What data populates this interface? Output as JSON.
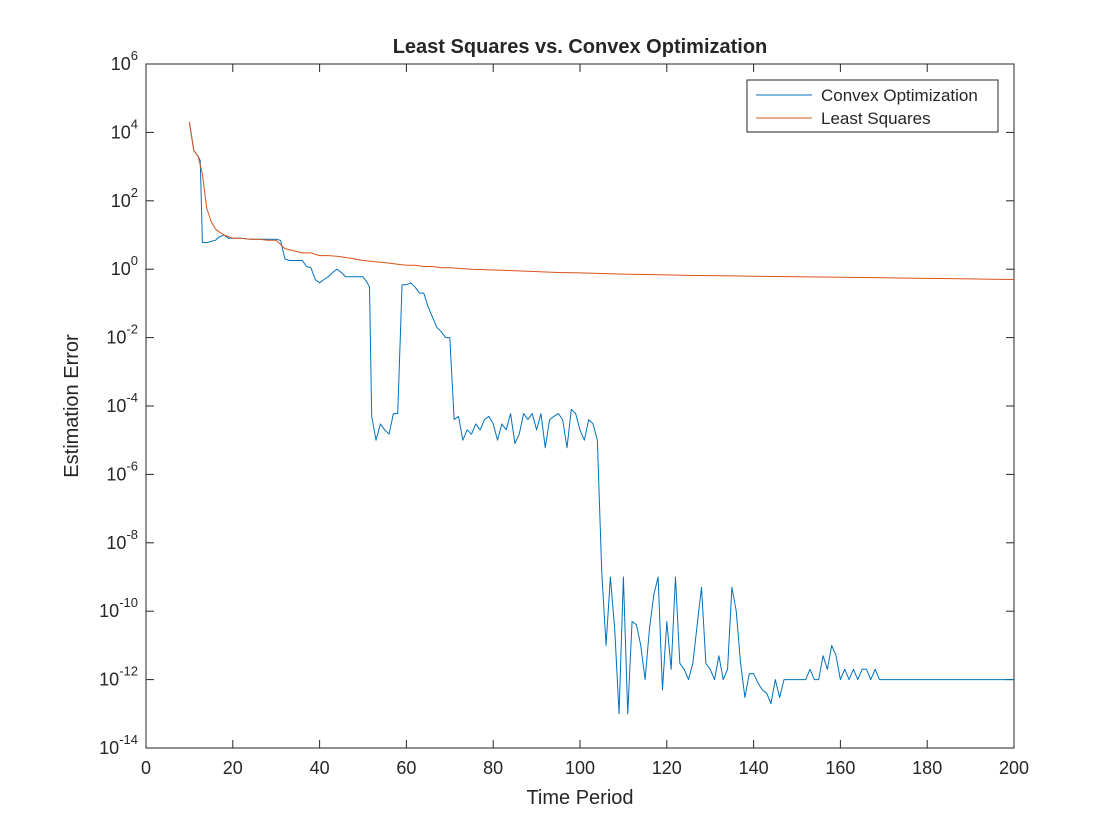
{
  "chart_data": {
    "type": "line",
    "title": "Least Squares vs. Convex Optimization",
    "xlabel": "Time Period",
    "ylabel": "Estimation Error",
    "x_scale": "linear",
    "y_scale": "log",
    "xlim": [
      0,
      200
    ],
    "ylim": [
      1e-14,
      1000000.0
    ],
    "xticks": [
      0,
      20,
      40,
      60,
      80,
      100,
      120,
      140,
      160,
      180,
      200
    ],
    "yticks": [
      {
        "base": "10",
        "exp": "-14",
        "value": 1e-14
      },
      {
        "base": "10",
        "exp": "-12",
        "value": 1e-12
      },
      {
        "base": "10",
        "exp": "-10",
        "value": 1e-10
      },
      {
        "base": "10",
        "exp": "-8",
        "value": 1e-08
      },
      {
        "base": "10",
        "exp": "-6",
        "value": 1e-06
      },
      {
        "base": "10",
        "exp": "-4",
        "value": 0.0001
      },
      {
        "base": "10",
        "exp": "-2",
        "value": 0.01
      },
      {
        "base": "10",
        "exp": "0",
        "value": 1
      },
      {
        "base": "10",
        "exp": "2",
        "value": 100
      },
      {
        "base": "10",
        "exp": "4",
        "value": 10000.0
      },
      {
        "base": "10",
        "exp": "6",
        "value": 1000000.0
      }
    ],
    "grid": false,
    "legend_position": "top-right",
    "series": [
      {
        "name": "Convex Optimization",
        "color": "#0072BD",
        "points": [
          [
            10,
            20000
          ],
          [
            11,
            3000
          ],
          [
            12,
            2000
          ],
          [
            12.5,
            1500
          ],
          [
            13,
            6
          ],
          [
            14,
            6
          ],
          [
            15,
            6.5
          ],
          [
            16,
            7
          ],
          [
            17,
            9
          ],
          [
            18,
            10
          ],
          [
            19,
            8
          ],
          [
            20,
            8
          ],
          [
            21,
            8
          ],
          [
            22,
            8
          ],
          [
            24,
            7.5
          ],
          [
            26,
            7.5
          ],
          [
            28,
            7.5
          ],
          [
            30,
            7.5
          ],
          [
            31,
            7
          ],
          [
            32,
            2
          ],
          [
            33,
            1.8
          ],
          [
            34,
            1.8
          ],
          [
            36,
            1.8
          ],
          [
            37,
            1.2
          ],
          [
            38,
            1.1
          ],
          [
            39,
            0.5
          ],
          [
            40,
            0.4
          ],
          [
            41,
            0.5
          ],
          [
            42,
            0.6
          ],
          [
            43,
            0.8
          ],
          [
            44,
            1.0
          ],
          [
            45,
            0.8
          ],
          [
            46,
            0.6
          ],
          [
            48,
            0.6
          ],
          [
            50,
            0.6
          ],
          [
            51,
            0.4
          ],
          [
            51.5,
            0.3
          ],
          [
            52,
            5e-05
          ],
          [
            53,
            1e-05
          ],
          [
            54,
            3e-05
          ],
          [
            55,
            2e-05
          ],
          [
            56,
            1.5e-05
          ],
          [
            57,
            6e-05
          ],
          [
            58,
            6e-05
          ],
          [
            59,
            0.35
          ],
          [
            60,
            0.35
          ],
          [
            61,
            0.4
          ],
          [
            62,
            0.3
          ],
          [
            63,
            0.2
          ],
          [
            64,
            0.2
          ],
          [
            65,
            0.08
          ],
          [
            66,
            0.04
          ],
          [
            67,
            0.02
          ],
          [
            68,
            0.015
          ],
          [
            69,
            0.01
          ],
          [
            70,
            0.01
          ],
          [
            71,
            4e-05
          ],
          [
            72,
            5e-05
          ],
          [
            73,
            1e-05
          ],
          [
            74,
            2e-05
          ],
          [
            75,
            1.5e-05
          ],
          [
            76,
            3e-05
          ],
          [
            77,
            2e-05
          ],
          [
            78,
            4e-05
          ],
          [
            79,
            5e-05
          ],
          [
            80,
            3e-05
          ],
          [
            81,
            1e-05
          ],
          [
            82,
            3e-05
          ],
          [
            83,
            2e-05
          ],
          [
            84,
            6e-05
          ],
          [
            85,
            8e-06
          ],
          [
            86,
            1.5e-05
          ],
          [
            87,
            6e-05
          ],
          [
            88,
            4e-05
          ],
          [
            89,
            6e-05
          ],
          [
            90,
            2e-05
          ],
          [
            91,
            6e-05
          ],
          [
            92,
            6e-06
          ],
          [
            93,
            4e-05
          ],
          [
            94,
            5e-05
          ],
          [
            95,
            6e-05
          ],
          [
            96,
            4e-05
          ],
          [
            97,
            6e-06
          ],
          [
            98,
            8e-05
          ],
          [
            99,
            6e-05
          ],
          [
            100,
            2e-05
          ],
          [
            101,
            1e-05
          ],
          [
            102,
            4e-05
          ],
          [
            103,
            3e-05
          ],
          [
            104,
            1e-05
          ],
          [
            105,
            1.5e-09
          ],
          [
            106,
            1e-11
          ],
          [
            107,
            1e-09
          ],
          [
            108,
            3e-11
          ],
          [
            109,
            1e-13
          ],
          [
            110,
            1e-09
          ],
          [
            111,
            1e-13
          ],
          [
            112,
            5e-11
          ],
          [
            113,
            4e-11
          ],
          [
            114,
            1e-11
          ],
          [
            115,
            1e-12
          ],
          [
            116,
            3e-11
          ],
          [
            117,
            3e-10
          ],
          [
            118,
            1e-09
          ],
          [
            119,
            5e-13
          ],
          [
            120,
            5e-11
          ],
          [
            121,
            2e-12
          ],
          [
            122,
            1e-09
          ],
          [
            123,
            3e-12
          ],
          [
            124,
            2e-12
          ],
          [
            125,
            1e-12
          ],
          [
            126,
            3e-12
          ],
          [
            127,
            4e-11
          ],
          [
            128,
            5e-10
          ],
          [
            129,
            3e-12
          ],
          [
            130,
            2e-12
          ],
          [
            131,
            1e-12
          ],
          [
            132,
            5e-12
          ],
          [
            133,
            1e-12
          ],
          [
            134,
            2e-12
          ],
          [
            135,
            5e-10
          ],
          [
            136,
            1e-10
          ],
          [
            137,
            3e-12
          ],
          [
            138,
            3e-13
          ],
          [
            139,
            1.5e-12
          ],
          [
            140,
            1.5e-12
          ],
          [
            141,
            8e-13
          ],
          [
            142,
            5e-13
          ],
          [
            143,
            4e-13
          ],
          [
            144,
            2e-13
          ],
          [
            145,
            1e-12
          ],
          [
            146,
            3e-13
          ],
          [
            147,
            1e-12
          ],
          [
            148,
            1e-12
          ],
          [
            149,
            1e-12
          ],
          [
            150,
            1e-12
          ],
          [
            151,
            1e-12
          ],
          [
            152,
            1e-12
          ],
          [
            153,
            2e-12
          ],
          [
            154,
            1e-12
          ],
          [
            155,
            1e-12
          ],
          [
            156,
            5e-12
          ],
          [
            157,
            2e-12
          ],
          [
            158,
            1e-11
          ],
          [
            159,
            5e-12
          ],
          [
            160,
            1e-12
          ],
          [
            161,
            2e-12
          ],
          [
            162,
            1e-12
          ],
          [
            163,
            2e-12
          ],
          [
            164,
            1e-12
          ],
          [
            165,
            2e-12
          ],
          [
            166,
            2e-12
          ],
          [
            167,
            1e-12
          ],
          [
            168,
            2e-12
          ],
          [
            169,
            1e-12
          ],
          [
            170,
            1e-12
          ],
          [
            171,
            1e-12
          ],
          [
            172,
            1e-12
          ],
          [
            173,
            1e-12
          ],
          [
            174,
            1e-12
          ],
          [
            175,
            1e-12
          ],
          [
            176,
            1e-12
          ],
          [
            177,
            1e-12
          ],
          [
            178,
            1e-12
          ],
          [
            179,
            1e-12
          ],
          [
            180,
            1e-12
          ],
          [
            181,
            1e-12
          ],
          [
            182,
            1e-12
          ],
          [
            183,
            1e-12
          ],
          [
            184,
            1e-12
          ],
          [
            185,
            1e-12
          ],
          [
            186,
            1e-12
          ],
          [
            187,
            1e-12
          ],
          [
            188,
            1e-12
          ],
          [
            189,
            1e-12
          ],
          [
            190,
            1e-12
          ],
          [
            191,
            1e-12
          ],
          [
            192,
            1e-12
          ],
          [
            193,
            1e-12
          ],
          [
            194,
            1e-12
          ],
          [
            195,
            1e-12
          ],
          [
            196,
            1e-12
          ],
          [
            197,
            1e-12
          ],
          [
            198,
            1e-12
          ],
          [
            199,
            1e-12
          ],
          [
            200,
            1e-12
          ]
        ]
      },
      {
        "name": "Least Squares",
        "color": "#D95319",
        "points": [
          [
            10,
            20000
          ],
          [
            11,
            3000
          ],
          [
            12,
            2000
          ],
          [
            13,
            600
          ],
          [
            14,
            60
          ],
          [
            15,
            25
          ],
          [
            16,
            15
          ],
          [
            17,
            12
          ],
          [
            18,
            10
          ],
          [
            19,
            9
          ],
          [
            20,
            8
          ],
          [
            22,
            8
          ],
          [
            24,
            7.5
          ],
          [
            26,
            7.5
          ],
          [
            28,
            7
          ],
          [
            30,
            7
          ],
          [
            32,
            4
          ],
          [
            34,
            3.5
          ],
          [
            36,
            3
          ],
          [
            38,
            3
          ],
          [
            40,
            2.5
          ],
          [
            42,
            2.5
          ],
          [
            44,
            2.4
          ],
          [
            46,
            2.2
          ],
          [
            48,
            2
          ],
          [
            50,
            1.8
          ],
          [
            52,
            1.7
          ],
          [
            54,
            1.6
          ],
          [
            56,
            1.5
          ],
          [
            58,
            1.4
          ],
          [
            60,
            1.3
          ],
          [
            62,
            1.3
          ],
          [
            64,
            1.2
          ],
          [
            66,
            1.2
          ],
          [
            68,
            1.1
          ],
          [
            70,
            1.1
          ],
          [
            75,
            1.0
          ],
          [
            80,
            0.95
          ],
          [
            85,
            0.9
          ],
          [
            90,
            0.85
          ],
          [
            95,
            0.8
          ],
          [
            100,
            0.78
          ],
          [
            105,
            0.75
          ],
          [
            110,
            0.72
          ],
          [
            115,
            0.7
          ],
          [
            120,
            0.68
          ],
          [
            125,
            0.66
          ],
          [
            130,
            0.65
          ],
          [
            135,
            0.64
          ],
          [
            140,
            0.62
          ],
          [
            145,
            0.61
          ],
          [
            150,
            0.6
          ],
          [
            155,
            0.59
          ],
          [
            160,
            0.58
          ],
          [
            165,
            0.57
          ],
          [
            170,
            0.56
          ],
          [
            175,
            0.55
          ],
          [
            180,
            0.54
          ],
          [
            185,
            0.53
          ],
          [
            190,
            0.52
          ],
          [
            195,
            0.51
          ],
          [
            200,
            0.5
          ]
        ]
      }
    ]
  }
}
